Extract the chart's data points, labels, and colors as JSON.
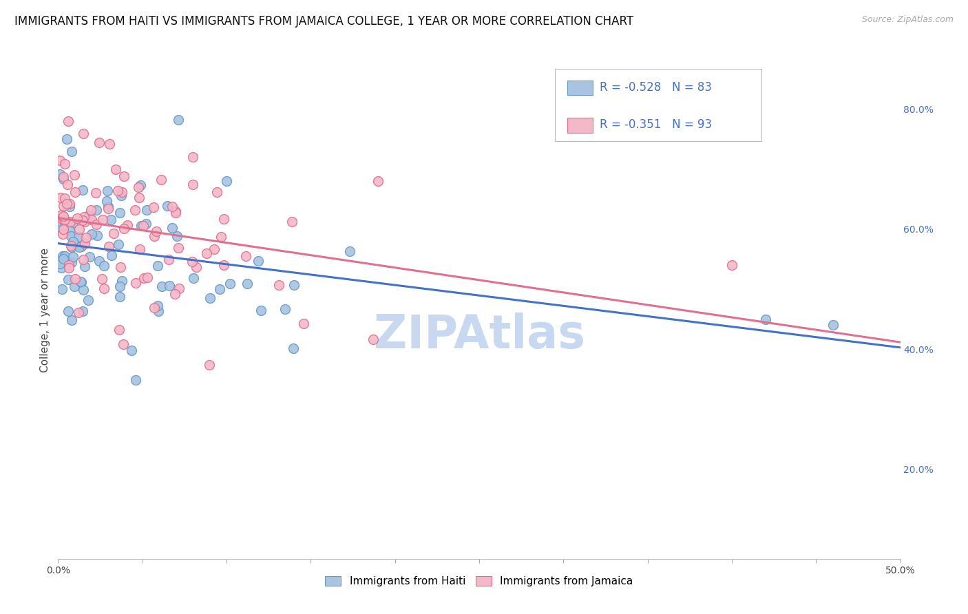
{
  "title": "IMMIGRANTS FROM HAITI VS IMMIGRANTS FROM JAMAICA COLLEGE, 1 YEAR OR MORE CORRELATION CHART",
  "source": "Source: ZipAtlas.com",
  "ylabel": "College, 1 year or more",
  "ylabel_right_ticks": [
    "20.0%",
    "40.0%",
    "60.0%",
    "80.0%"
  ],
  "ylabel_right_vals": [
    0.2,
    0.4,
    0.6,
    0.8
  ],
  "xlim": [
    0.0,
    0.5
  ],
  "ylim": [
    0.05,
    0.88
  ],
  "haiti_color": "#a8c4e0",
  "haiti_edge_color": "#6699cc",
  "jamaica_color": "#f4b8c8",
  "jamaica_edge_color": "#e07090",
  "haiti_line_color": "#4472c4",
  "jamaica_line_color": "#e07090",
  "haiti_R": -0.528,
  "haiti_N": 83,
  "jamaica_R": -0.351,
  "jamaica_N": 93,
  "legend_text_color": "#4472c4",
  "watermark": "ZIPAtlas",
  "watermark_color": "#c8d8f0",
  "background_color": "#ffffff",
  "grid_color": "#d0d8e8",
  "title_fontsize": 12,
  "axis_label_fontsize": 11,
  "tick_fontsize": 10,
  "legend_fontsize": 12
}
